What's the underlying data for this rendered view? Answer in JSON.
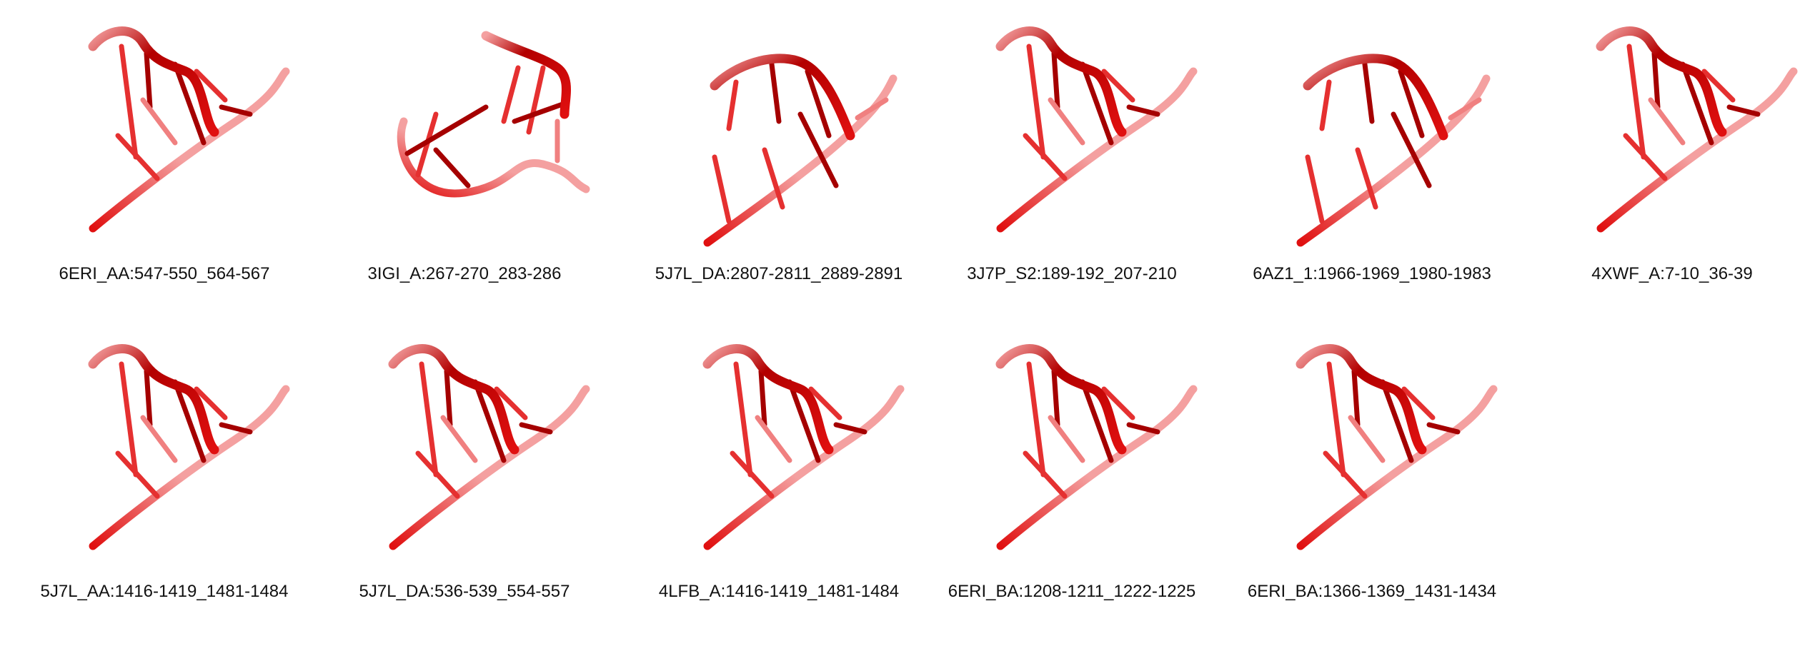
{
  "figure": {
    "structures": [
      {
        "label": "6ERI_AA:547-550_564-567",
        "variant": "hairpin"
      },
      {
        "label": "3IGI_A:267-270_283-286",
        "variant": "loop"
      },
      {
        "label": "5J7L_DA:2807-2811_2889-2891",
        "variant": "arch"
      },
      {
        "label": "3J7P_S2:189-192_207-210",
        "variant": "hairpin"
      },
      {
        "label": "6AZ1_1:1966-1969_1980-1983",
        "variant": "arch"
      },
      {
        "label": "4XWF_A:7-10_36-39",
        "variant": "hairpin"
      },
      {
        "label": "5J7L_AA:1416-1419_1481-1484",
        "variant": "hairpin"
      },
      {
        "label": "5J7L_DA:536-539_554-557",
        "variant": "hairpin"
      },
      {
        "label": "4LFB_A:1416-1419_1481-1484",
        "variant": "hairpin"
      },
      {
        "label": "6ERI_BA:1208-1211_1222-1225",
        "variant": "hairpin"
      },
      {
        "label": "6ERI_BA:1366-1369_1431-1434",
        "variant": "hairpin"
      }
    ],
    "colors": {
      "strand_dark": "#b30000",
      "strand_mid": "#e01010",
      "strand_light": "#f4a0a0",
      "base_dark": "#a50000",
      "base_mid": "#e53030",
      "base_light": "#f08080"
    }
  }
}
